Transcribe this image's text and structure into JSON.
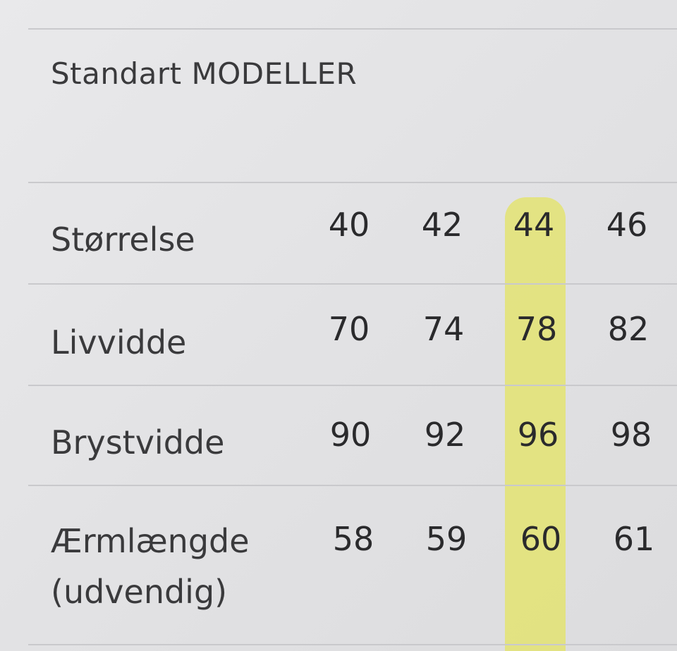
{
  "title": "Standart MODELLER",
  "highlight_color": "#e4e36a",
  "highlighted_column": "44",
  "table": {
    "rows": [
      {
        "label": "Størrelse",
        "values": [
          "40",
          "42",
          "44",
          "46"
        ]
      },
      {
        "label": "Livvidde",
        "values": [
          "70",
          "74",
          "78",
          "82"
        ]
      },
      {
        "label": "Brystvidde",
        "values": [
          "90",
          "92",
          "96",
          "98"
        ]
      },
      {
        "label": "Ærmlængde (udvendig)",
        "values": [
          "58",
          "59",
          "60",
          "61"
        ]
      }
    ]
  }
}
